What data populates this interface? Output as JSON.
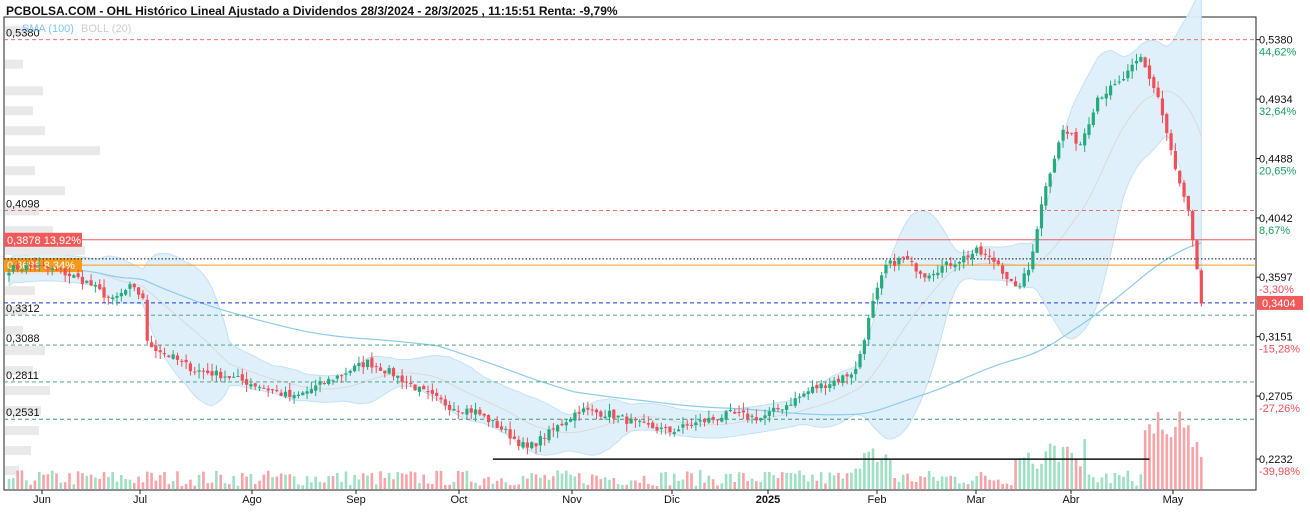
{
  "header": {
    "title": "PCBOLSA.COM - OHL Histórico Lineal Ajustado a Dividendos 28/3/2024 - 28/3/2025 , 11:15:51 Renta: -9,79%"
  },
  "legend": {
    "sma": "SMA (100)",
    "boll": "BOLL (20)"
  },
  "colors": {
    "up": "#26a97c",
    "down": "#ef4f57",
    "band_fill": "#dff0fb",
    "band_edge": "#bfe0f5",
    "sma100": "#8ccbec",
    "sma20": "#d9d9d9",
    "resistance": "#e85a5a",
    "support": "#3b9a7a",
    "level_red": "#f05a5a",
    "level_orange": "#f59a1e",
    "level_blue": "#2233dd",
    "price_box": "#f05a5a"
  },
  "chart_data": {
    "type": "candlestick",
    "ylim": [
      0.2,
      0.555
    ],
    "x_tick_labels": [
      "Jun",
      "Jul",
      "Ago",
      "Sep",
      "Oct",
      "Nov",
      "Dic",
      "2025",
      "Feb",
      "Mar",
      "Abr",
      "May"
    ],
    "right_ticks": [
      {
        "price": "0,5380",
        "pct": "44,62%",
        "sign": "pos",
        "value": 0.538
      },
      {
        "price": "0,4934",
        "pct": "32,64%",
        "sign": "pos",
        "value": 0.4934
      },
      {
        "price": "0,4488",
        "pct": "20,65%",
        "sign": "pos",
        "value": 0.4488
      },
      {
        "price": "0,4042",
        "pct": "8,67%",
        "sign": "pos",
        "value": 0.4042
      },
      {
        "price": "0,3597",
        "pct": "-3,30%",
        "sign": "neg",
        "value": 0.3597
      },
      {
        "price": "0,3151",
        "pct": "-15,28%",
        "sign": "neg",
        "value": 0.3151
      },
      {
        "price": "0,2705",
        "pct": "-27,26%",
        "sign": "neg",
        "value": 0.2705
      },
      {
        "price": "0,2232",
        "pct": "-39,98%",
        "sign": "neg",
        "value": 0.2232
      }
    ],
    "left_levels": [
      {
        "label": "0,5380",
        "value": 0.538,
        "kind": "resistance"
      },
      {
        "label": "0,4098",
        "value": 0.4098,
        "kind": "resistance"
      },
      {
        "label": "0,3312",
        "value": 0.3312,
        "kind": "support"
      },
      {
        "label": "0,3088",
        "value": 0.3088,
        "kind": "support"
      },
      {
        "label": "0,2811",
        "value": 0.2811,
        "kind": "support"
      },
      {
        "label": "0,2531",
        "value": 0.2531,
        "kind": "support"
      }
    ],
    "solid_levels": [
      {
        "label": "0,3878",
        "pct": "13,92%",
        "value": 0.3878,
        "kind": "red"
      },
      {
        "label": "0,3688",
        "pct": "8,34%",
        "value": 0.3688,
        "kind": "orange"
      }
    ],
    "black_dotted_level": 0.3735,
    "last_price": {
      "label": "0,3404",
      "value": 0.3404
    },
    "horizontal_segment": {
      "value": 0.2232,
      "from_index": 112,
      "to_index": 264
    },
    "candles_count": 253,
    "close_anchors": [
      [
        0,
        0.366
      ],
      [
        6,
        0.368
      ],
      [
        12,
        0.364
      ],
      [
        18,
        0.356
      ],
      [
        24,
        0.342
      ],
      [
        28,
        0.352
      ],
      [
        31,
        0.345
      ],
      [
        32,
        0.31
      ],
      [
        37,
        0.301
      ],
      [
        43,
        0.29
      ],
      [
        50,
        0.286
      ],
      [
        58,
        0.278
      ],
      [
        66,
        0.269
      ],
      [
        72,
        0.279
      ],
      [
        79,
        0.29
      ],
      [
        83,
        0.296
      ],
      [
        89,
        0.287
      ],
      [
        95,
        0.275
      ],
      [
        102,
        0.263
      ],
      [
        108,
        0.259
      ],
      [
        114,
        0.246
      ],
      [
        120,
        0.231
      ],
      [
        126,
        0.245
      ],
      [
        132,
        0.26
      ],
      [
        139,
        0.257
      ],
      [
        146,
        0.249
      ],
      [
        153,
        0.244
      ],
      [
        160,
        0.251
      ],
      [
        167,
        0.257
      ],
      [
        174,
        0.254
      ],
      [
        180,
        0.264
      ],
      [
        186,
        0.276
      ],
      [
        192,
        0.283
      ],
      [
        196,
        0.29
      ],
      [
        200,
        0.34
      ],
      [
        203,
        0.368
      ],
      [
        207,
        0.374
      ],
      [
        212,
        0.362
      ],
      [
        218,
        0.37
      ],
      [
        224,
        0.379
      ],
      [
        229,
        0.37
      ],
      [
        233,
        0.35
      ],
      [
        236,
        0.365
      ],
      [
        240,
        0.43
      ],
      [
        244,
        0.47
      ],
      [
        248,
        0.46
      ],
      [
        252,
        0.495
      ],
      [
        257,
        0.505
      ],
      [
        262,
        0.524
      ],
      [
        266,
        0.495
      ],
      [
        270,
        0.44
      ],
      [
        273,
        0.408
      ],
      [
        276,
        0.34
      ]
    ]
  }
}
